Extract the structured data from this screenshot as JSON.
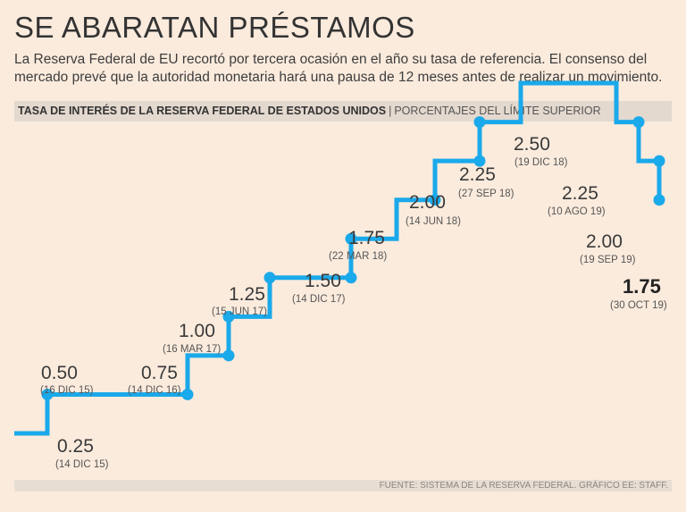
{
  "title": "SE ABARATAN PRÉSTAMOS",
  "subtitle": "La Reserva Federal de EU recortó por tercera ocasión en el año su tasa de referencia. El consenso del mercado prevé que la autoridad monetaria hará una pausa de 12 meses antes de realizar un movimiento.",
  "header": {
    "main": "TASA DE INTERÉS DE LA RESERVA FEDERAL DE ESTADOS UNIDOS",
    "separator": "|",
    "sub": "PORCENTAJES DEL LÍMITE SUPERIOR"
  },
  "footer": "FUENTE: SISTEMA DE LA RESERVA FEDERAL. GRÁFICO EE: STAFF.",
  "colors": {
    "background": "#fbebdd",
    "line": "#1aa9ea",
    "band": "#e4d9cf"
  },
  "chart_data": {
    "type": "line",
    "step": true,
    "unit": "%",
    "points": [
      {
        "value_label": "0.25",
        "date_label": "(14 DIC 15)",
        "y": 0.25,
        "label_pos": "below"
      },
      {
        "value_label": "0.50",
        "date_label": "(16 DIC 15)",
        "y": 0.5,
        "label_pos": "above"
      },
      {
        "value_label": "0.75",
        "date_label": "(14 DIC 16)",
        "y": 0.75,
        "label_pos": "above"
      },
      {
        "value_label": "1.00",
        "date_label": "(16 MAR 17)",
        "y": 1.0,
        "label_pos": "above"
      },
      {
        "value_label": "1.25",
        "date_label": "(15 JUN 17)",
        "y": 1.25,
        "label_pos": "above"
      },
      {
        "value_label": "1.50",
        "date_label": "(14 DIC 17)",
        "y": 1.5,
        "label_pos": "above"
      },
      {
        "value_label": "1.75",
        "date_label": "(22 MAR 18)",
        "y": 1.75,
        "label_pos": "above"
      },
      {
        "value_label": "2.00",
        "date_label": "(14 JUN 18)",
        "y": 2.0,
        "label_pos": "above"
      },
      {
        "value_label": "2.25",
        "date_label": "(27 SEP 18)",
        "y": 2.25,
        "label_pos": "above"
      },
      {
        "value_label": "2.50",
        "date_label": "(19 DIC 18)",
        "y": 2.5,
        "label_pos": "above"
      },
      {
        "value_label": "2.25",
        "date_label": "(10 AGO 19)",
        "y": 2.25,
        "label_pos": "left"
      },
      {
        "value_label": "2.00",
        "date_label": "(19 SEP 19)",
        "y": 2.0,
        "label_pos": "left"
      },
      {
        "value_label": "1.75",
        "date_label": "(30 OCT 19)",
        "y": 1.75,
        "label_pos": "below",
        "highlight": true
      }
    ],
    "grid": false,
    "legend": "none"
  }
}
